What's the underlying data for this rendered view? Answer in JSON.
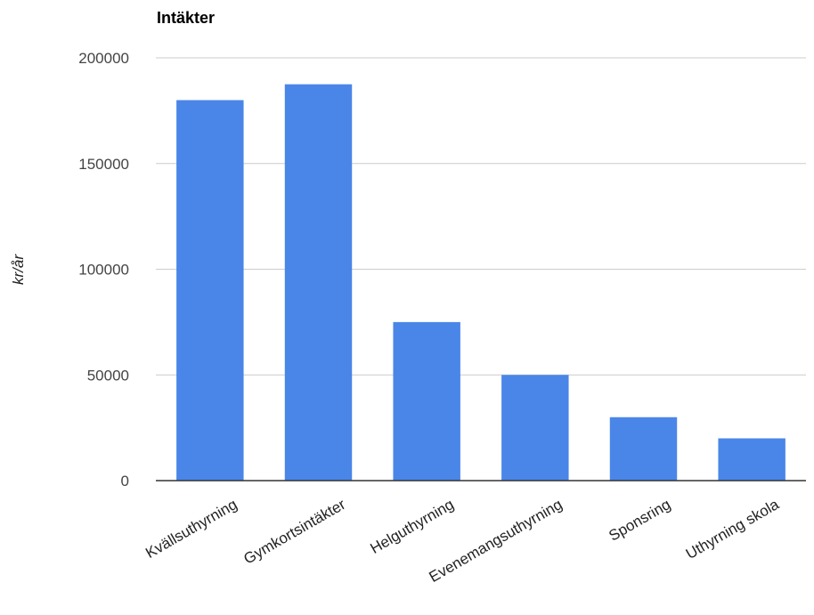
{
  "chart_data": {
    "type": "bar",
    "title": "Intäkter",
    "xlabel": "",
    "ylabel": "kr/år",
    "categories": [
      "Kvällsuthyrning",
      "Gymkortsintäkter",
      "Helguthyrning",
      "Evenemangsuthyrning",
      "Sponsring",
      "Uthyrning skola"
    ],
    "values": [
      180000,
      187500,
      75000,
      50000,
      30000,
      20000
    ],
    "ylim": [
      0,
      200000
    ],
    "yticks": [
      "0",
      "50000",
      "100000",
      "150000",
      "200000"
    ],
    "grid": true,
    "legend": "none",
    "colors": {
      "bar": "#4a86e8"
    }
  }
}
